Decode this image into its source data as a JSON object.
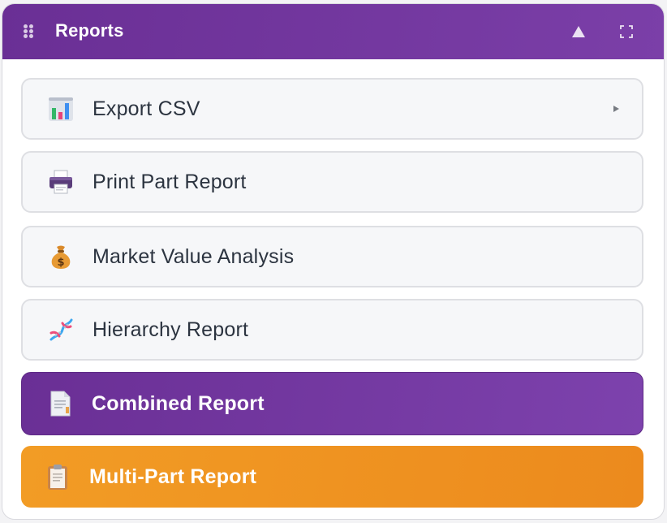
{
  "header": {
    "title": "Reports",
    "colors": {
      "bg": "#6a2f95",
      "text": "#ffffff"
    },
    "buttons": [
      {
        "name": "collapse",
        "icon": "triangle-up-icon"
      },
      {
        "name": "expand",
        "icon": "fullscreen-icon"
      }
    ]
  },
  "items": [
    {
      "label": "Export CSV",
      "icon": "bar-chart-icon",
      "style": "plain",
      "has_submenu": true
    },
    {
      "label": "Print Part Report",
      "icon": "printer-icon",
      "style": "plain"
    },
    {
      "label": "Market Value Analysis",
      "icon": "money-bag-icon",
      "style": "plain"
    },
    {
      "label": "Hierarchy Report",
      "icon": "dna-icon",
      "style": "plain"
    },
    {
      "label": "Combined Report",
      "icon": "document-icon",
      "style": "primary",
      "color": "#6a2f95"
    },
    {
      "label": "Multi-Part Report",
      "icon": "clipboard-icon",
      "style": "accent",
      "color": "#f29c25"
    }
  ]
}
